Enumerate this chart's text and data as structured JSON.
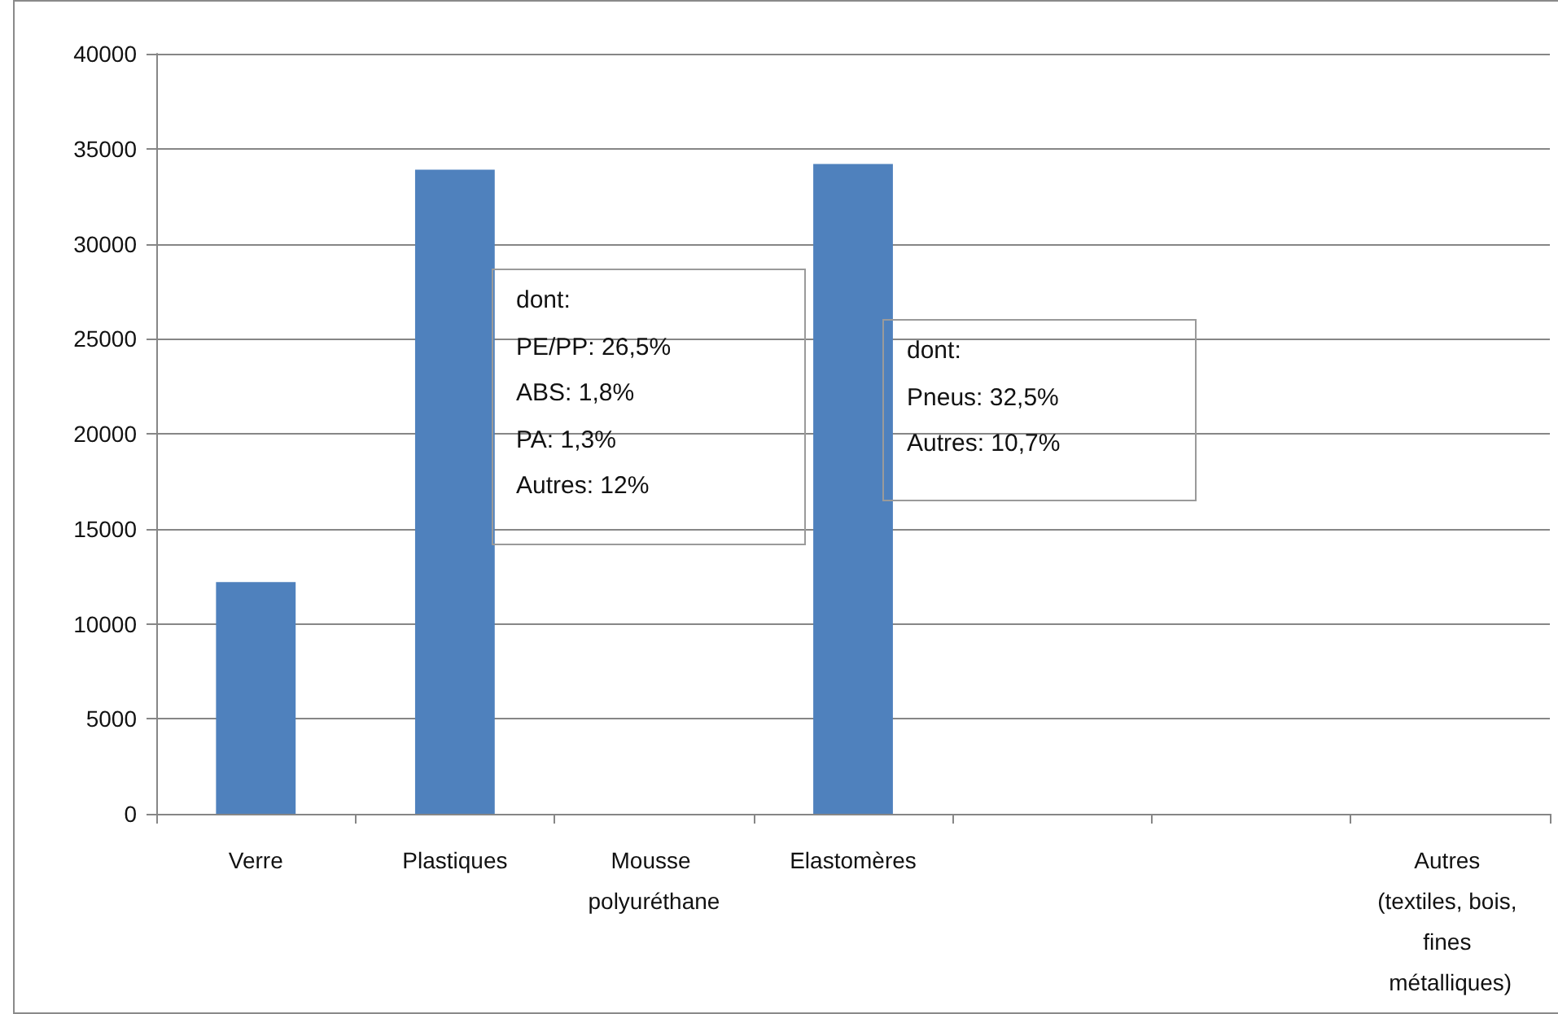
{
  "chart_data": {
    "type": "bar",
    "categories": [
      "Verre",
      "Plastiques",
      "Mousse polyuréthane",
      "Elastomères",
      null,
      null,
      "Autres (textiles, bois, fines métalliques)"
    ],
    "values": [
      12200,
      33900,
      null,
      34200,
      null,
      null,
      null
    ],
    "color": "#4f81bd",
    "ylim": [
      0,
      40000
    ],
    "yticks": [
      0,
      5000,
      10000,
      15000,
      20000,
      25000,
      30000,
      35000,
      40000
    ],
    "grid": "y",
    "annotations": [
      "dont:\nPE/PP: 26,5%\nABS: 1,8%\nPA: 1,3%\nAutres: 12%",
      "dont:\nPneus: 32,5%\nAutres: 10,7%"
    ]
  }
}
